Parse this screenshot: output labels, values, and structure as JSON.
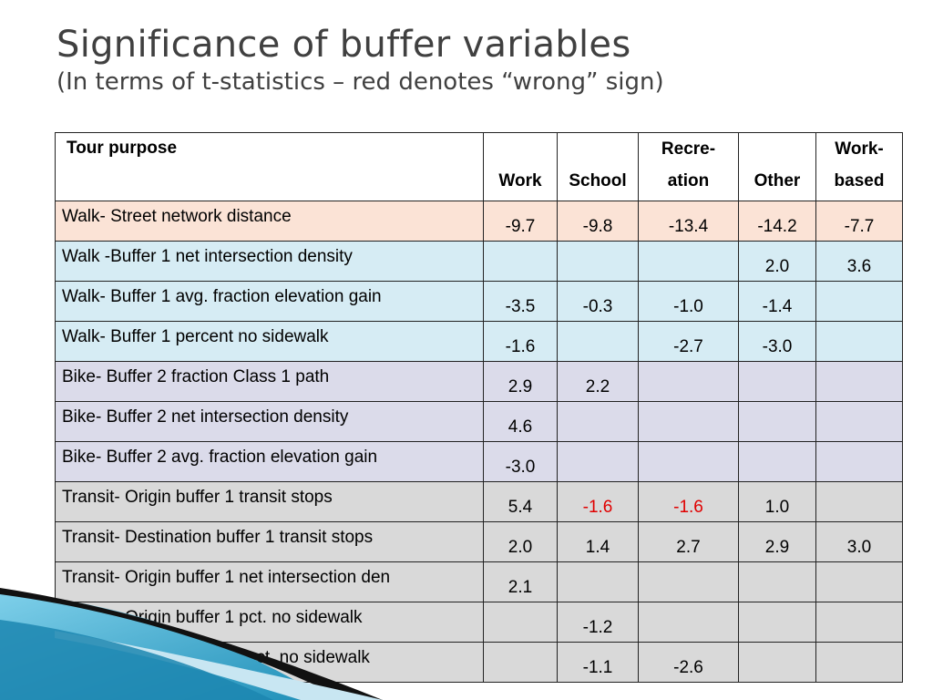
{
  "title": "Significance of buffer variables",
  "subtitle": "(In terms of t-statistics – red denotes “wrong” sign)",
  "table": {
    "header": {
      "purpose": "Tour purpose",
      "col_lines": [
        [
          "",
          "Work"
        ],
        [
          "",
          "School"
        ],
        [
          "Recre-",
          "ation"
        ],
        [
          "",
          "Other"
        ],
        [
          "Work-",
          "based"
        ]
      ]
    },
    "rows": [
      {
        "label": "Walk- Street network distance",
        "group": "walk-dist",
        "values": [
          "-9.7",
          "-9.8",
          "-13.4",
          "-14.2",
          "-7.7"
        ],
        "wrong": [
          false,
          false,
          false,
          false,
          false
        ]
      },
      {
        "label": "Walk -Buffer 1 net intersection density",
        "group": "walk",
        "values": [
          "",
          "",
          "",
          "2.0",
          "3.6"
        ],
        "wrong": [
          false,
          false,
          false,
          false,
          false
        ]
      },
      {
        "label": "Walk- Buffer 1 avg. fraction elevation gain",
        "group": "walk",
        "values": [
          "-3.5",
          "-0.3",
          "-1.0",
          "-1.4",
          ""
        ],
        "wrong": [
          false,
          false,
          false,
          false,
          false
        ]
      },
      {
        "label": "Walk- Buffer 1 percent no sidewalk",
        "group": "walk",
        "values": [
          "-1.6",
          "",
          "-2.7",
          "-3.0",
          ""
        ],
        "wrong": [
          false,
          false,
          false,
          false,
          false
        ]
      },
      {
        "label": "Bike- Buffer 2 fraction Class 1 path",
        "group": "bike",
        "values": [
          "2.9",
          "2.2",
          "",
          "",
          ""
        ],
        "wrong": [
          false,
          false,
          false,
          false,
          false
        ]
      },
      {
        "label": "Bike- Buffer 2 net intersection density",
        "group": "bike",
        "values": [
          "4.6",
          "",
          "",
          "",
          ""
        ],
        "wrong": [
          false,
          false,
          false,
          false,
          false
        ]
      },
      {
        "label": "Bike- Buffer 2 avg. fraction elevation gain",
        "group": "bike",
        "values": [
          "-3.0",
          "",
          "",
          "",
          ""
        ],
        "wrong": [
          false,
          false,
          false,
          false,
          false
        ]
      },
      {
        "label": "Transit- Origin buffer 1 transit stops",
        "group": "transit",
        "values": [
          "5.4",
          "-1.6",
          "-1.6",
          "1.0",
          ""
        ],
        "wrong": [
          false,
          true,
          true,
          false,
          false
        ]
      },
      {
        "label": "Transit- Destination buffer 1 transit stops",
        "group": "transit",
        "values": [
          "2.0",
          "1.4",
          "2.7",
          "2.9",
          "3.0"
        ],
        "wrong": [
          false,
          false,
          false,
          false,
          false
        ]
      },
      {
        "label": "Transit- Origin buffer 1 net intersection den",
        "group": "transit",
        "values": [
          "2.1",
          "",
          "",
          "",
          ""
        ],
        "wrong": [
          false,
          false,
          false,
          false,
          false
        ]
      },
      {
        "label": "Transit- Origin buffer 1 pct. no sidewalk",
        "group": "transit",
        "values": [
          "",
          "-1.2",
          "",
          "",
          ""
        ],
        "wrong": [
          false,
          false,
          false,
          false,
          false
        ]
      },
      {
        "label": "Transit- Destin. buffer 1 pct. no sidewalk",
        "group": "transit",
        "values": [
          "",
          "-1.1",
          "-2.6",
          "",
          ""
        ],
        "wrong": [
          false,
          false,
          false,
          false,
          false
        ]
      }
    ]
  },
  "colors": {
    "title_text": "#404040",
    "wrong_sign": "#e00000",
    "walk_distance_fill": "#fbe3d6",
    "walk_fill": "#d6ecf4",
    "bike_fill": "#dbdbea",
    "transit_fill": "#d9d9d9",
    "accent_teal": "#2aa3c8"
  }
}
